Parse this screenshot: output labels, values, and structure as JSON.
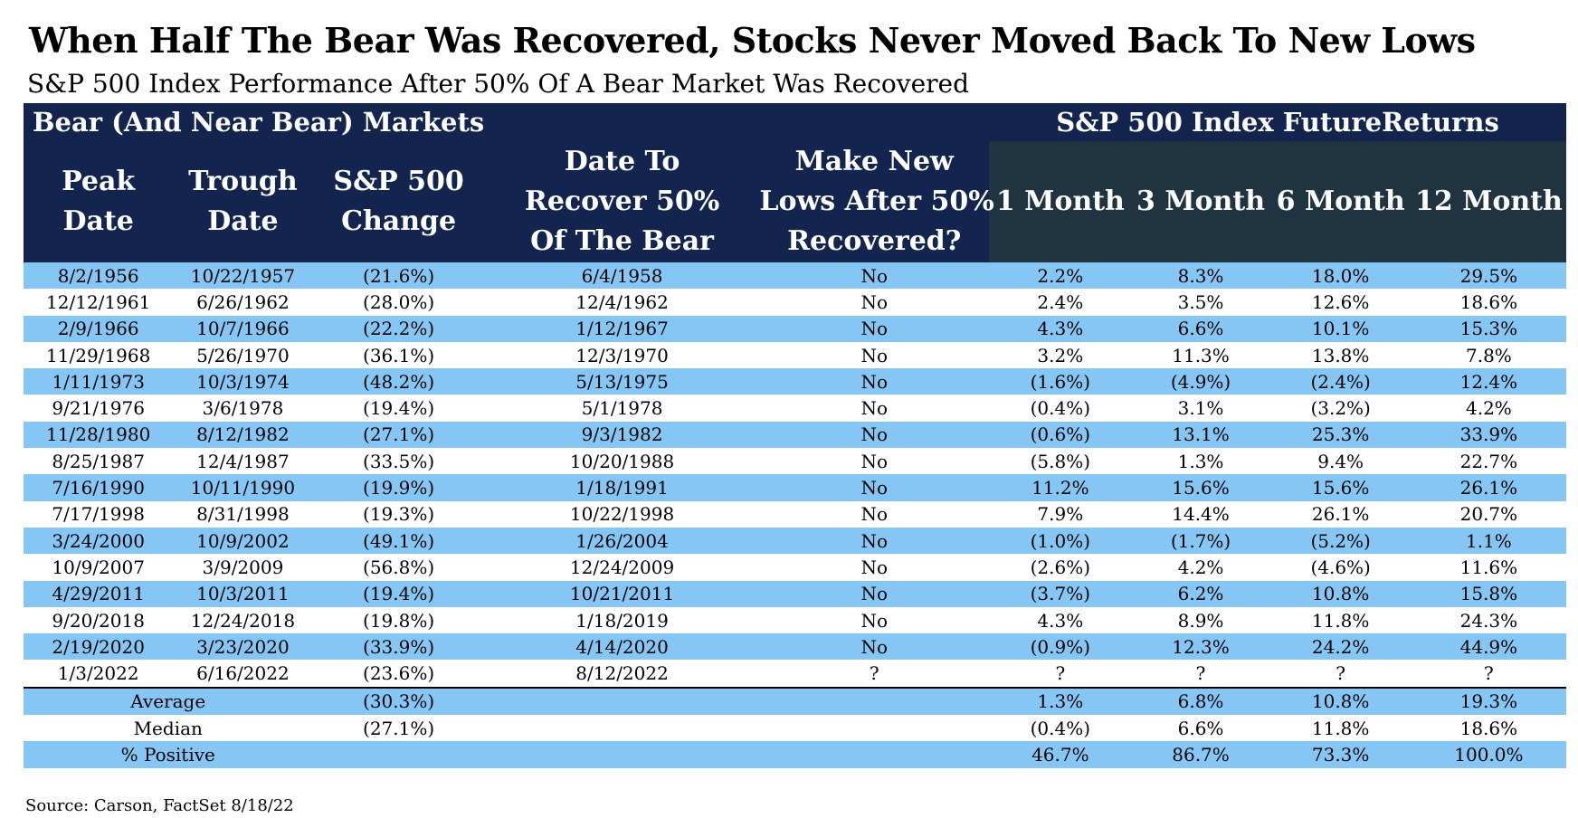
{
  "title": "When Half The Bear Was Recovered, Stocks Never Moved Back To New Lows",
  "subtitle": "S&P 500 Index Performance After 50% Of A Bear Market Was Recovered",
  "source": "Source: Carson, FactSet 8/18/22",
  "colors": {
    "header_navy": "#13244f",
    "header_returns": "#1f3340",
    "stripe_blue": "#86c6f5"
  },
  "chart_data": {
    "type": "table",
    "groups": [
      "Bear (And Near Bear) Markets",
      "S&P 500 Index FutureReturns"
    ],
    "columns": [
      [
        "Peak",
        "Date"
      ],
      [
        "Trough",
        "Date"
      ],
      [
        "S&P 500",
        "Change"
      ],
      [
        "Date To",
        "Recover 50%",
        "Of The Bear"
      ],
      [
        "Make New",
        "Lows After 50%",
        "Recovered?"
      ],
      [
        "1 Month"
      ],
      [
        "3 Month"
      ],
      [
        "6 Month"
      ],
      [
        "12 Month"
      ]
    ],
    "rows": [
      [
        "8/2/1956",
        "10/22/1957",
        "(21.6%)",
        "6/4/1958",
        "No",
        "2.2%",
        "8.3%",
        "18.0%",
        "29.5%"
      ],
      [
        "12/12/1961",
        "6/26/1962",
        "(28.0%)",
        "12/4/1962",
        "No",
        "2.4%",
        "3.5%",
        "12.6%",
        "18.6%"
      ],
      [
        "2/9/1966",
        "10/7/1966",
        "(22.2%)",
        "1/12/1967",
        "No",
        "4.3%",
        "6.6%",
        "10.1%",
        "15.3%"
      ],
      [
        "11/29/1968",
        "5/26/1970",
        "(36.1%)",
        "12/3/1970",
        "No",
        "3.2%",
        "11.3%",
        "13.8%",
        "7.8%"
      ],
      [
        "1/11/1973",
        "10/3/1974",
        "(48.2%)",
        "5/13/1975",
        "No",
        "(1.6%)",
        "(4.9%)",
        "(2.4%)",
        "12.4%"
      ],
      [
        "9/21/1976",
        "3/6/1978",
        "(19.4%)",
        "5/1/1978",
        "No",
        "(0.4%)",
        "3.1%",
        "(3.2%)",
        "4.2%"
      ],
      [
        "11/28/1980",
        "8/12/1982",
        "(27.1%)",
        "9/3/1982",
        "No",
        "(0.6%)",
        "13.1%",
        "25.3%",
        "33.9%"
      ],
      [
        "8/25/1987",
        "12/4/1987",
        "(33.5%)",
        "10/20/1988",
        "No",
        "(5.8%)",
        "1.3%",
        "9.4%",
        "22.7%"
      ],
      [
        "7/16/1990",
        "10/11/1990",
        "(19.9%)",
        "1/18/1991",
        "No",
        "11.2%",
        "15.6%",
        "15.6%",
        "26.1%"
      ],
      [
        "7/17/1998",
        "8/31/1998",
        "(19.3%)",
        "10/22/1998",
        "No",
        "7.9%",
        "14.4%",
        "26.1%",
        "20.7%"
      ],
      [
        "3/24/2000",
        "10/9/2002",
        "(49.1%)",
        "1/26/2004",
        "No",
        "(1.0%)",
        "(1.7%)",
        "(5.2%)",
        "1.1%"
      ],
      [
        "10/9/2007",
        "3/9/2009",
        "(56.8%)",
        "12/24/2009",
        "No",
        "(2.6%)",
        "4.2%",
        "(4.6%)",
        "11.6%"
      ],
      [
        "4/29/2011",
        "10/3/2011",
        "(19.4%)",
        "10/21/2011",
        "No",
        "(3.7%)",
        "6.2%",
        "10.8%",
        "15.8%"
      ],
      [
        "9/20/2018",
        "12/24/2018",
        "(19.8%)",
        "1/18/2019",
        "No",
        "4.3%",
        "8.9%",
        "11.8%",
        "24.3%"
      ],
      [
        "2/19/2020",
        "3/23/2020",
        "(33.9%)",
        "4/14/2020",
        "No",
        "(0.9%)",
        "12.3%",
        "24.2%",
        "44.9%"
      ],
      [
        "1/3/2022",
        "6/16/2022",
        "(23.6%)",
        "8/12/2022",
        "?",
        "?",
        "?",
        "?",
        "?"
      ]
    ],
    "summary": [
      {
        "label": "Average",
        "change": "(30.3%)",
        "returns": [
          "1.3%",
          "6.8%",
          "10.8%",
          "19.3%"
        ]
      },
      {
        "label": "Median",
        "change": "(27.1%)",
        "returns": [
          "(0.4%)",
          "6.6%",
          "11.8%",
          "18.6%"
        ]
      },
      {
        "label": "% Positive",
        "change": "",
        "returns": [
          "46.7%",
          "86.7%",
          "73.3%",
          "100.0%"
        ]
      }
    ]
  }
}
